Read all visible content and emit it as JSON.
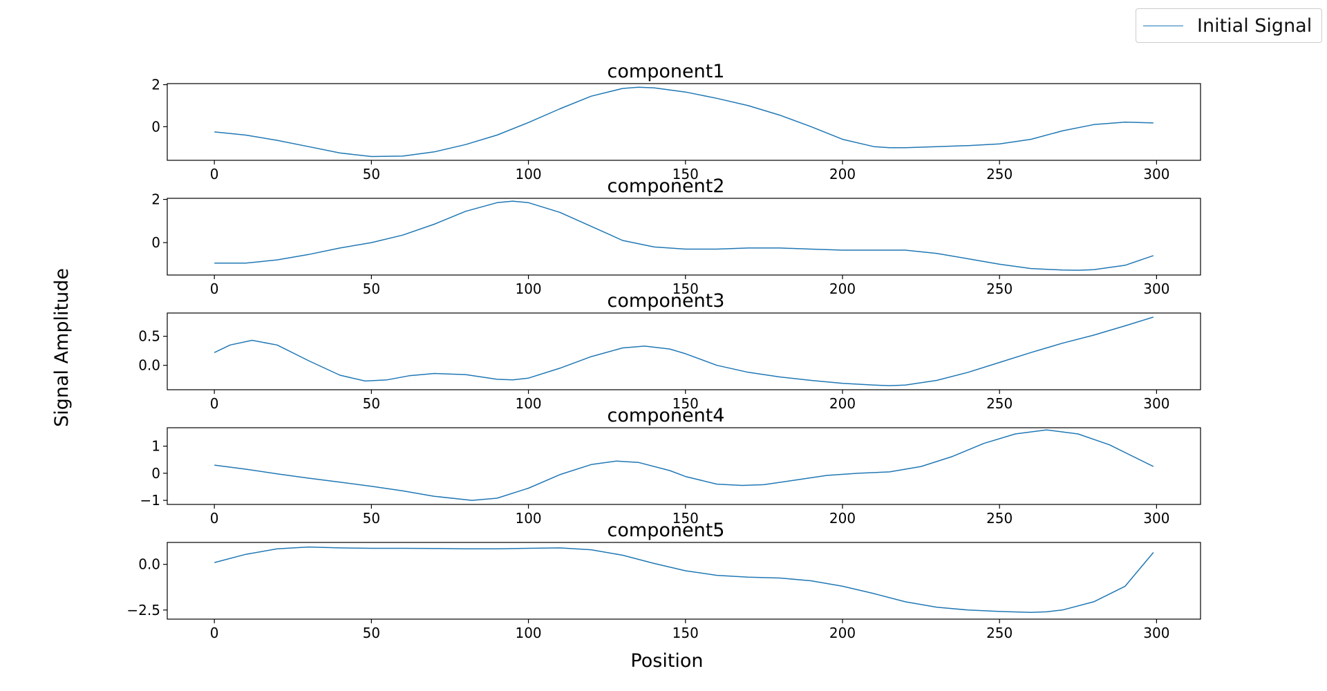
{
  "legend": {
    "label": "Initial Signal"
  },
  "colors": {
    "line": "#1f77b4",
    "axes": "#000000"
  },
  "chart_data": {
    "type": "line",
    "xlabel": "Position",
    "ylabel": "Signal Amplitude",
    "legend_position": "top-right",
    "grid": false,
    "subplots": [
      {
        "title": "component1",
        "xlim": [
          -15,
          314
        ],
        "ylim": [
          -1.6,
          2.05
        ],
        "xticks": [
          0,
          50,
          100,
          150,
          200,
          250,
          300
        ],
        "yticks": [
          0,
          2
        ],
        "ytick_labels": [
          "0",
          "2"
        ],
        "series": [
          {
            "x": [
              0,
              10,
              20,
              30,
              40,
              50,
              60,
              70,
              80,
              90,
              100,
              110,
              120,
              130,
              135,
              140,
              150,
              160,
              170,
              180,
              190,
              200,
              210,
              215,
              220,
              230,
              240,
              250,
              260,
              270,
              280,
              290,
              299
            ],
            "y": [
              -0.25,
              -0.4,
              -0.65,
              -0.95,
              -1.25,
              -1.42,
              -1.4,
              -1.2,
              -0.85,
              -0.4,
              0.2,
              0.85,
              1.45,
              1.82,
              1.88,
              1.85,
              1.65,
              1.35,
              1.0,
              0.55,
              0.0,
              -0.6,
              -0.95,
              -1.0,
              -1.0,
              -0.95,
              -0.9,
              -0.82,
              -0.6,
              -0.2,
              0.1,
              0.22,
              0.18
            ]
          }
        ]
      },
      {
        "title": "component2",
        "xlim": [
          -15,
          314
        ],
        "ylim": [
          -1.5,
          2.05
        ],
        "xticks": [
          0,
          50,
          100,
          150,
          200,
          250,
          300
        ],
        "yticks": [
          0,
          2
        ],
        "ytick_labels": [
          "0",
          "2"
        ],
        "series": [
          {
            "x": [
              0,
              10,
              20,
              30,
              40,
              50,
              60,
              70,
              80,
              90,
              95,
              100,
              110,
              120,
              130,
              140,
              150,
              160,
              170,
              180,
              190,
              200,
              210,
              220,
              230,
              240,
              250,
              260,
              270,
              275,
              280,
              290,
              299
            ],
            "y": [
              -0.95,
              -0.95,
              -0.8,
              -0.55,
              -0.25,
              0.0,
              0.35,
              0.85,
              1.45,
              1.85,
              1.92,
              1.85,
              1.4,
              0.75,
              0.1,
              -0.2,
              -0.3,
              -0.3,
              -0.25,
              -0.25,
              -0.3,
              -0.35,
              -0.35,
              -0.35,
              -0.5,
              -0.75,
              -1.0,
              -1.2,
              -1.27,
              -1.28,
              -1.25,
              -1.05,
              -0.6
            ]
          }
        ]
      },
      {
        "title": "component3",
        "xlim": [
          -15,
          314
        ],
        "ylim": [
          -0.42,
          0.9
        ],
        "xticks": [
          0,
          50,
          100,
          150,
          200,
          250,
          300
        ],
        "yticks": [
          0,
          0.5
        ],
        "ytick_labels": [
          "0.0",
          "0.5"
        ],
        "series": [
          {
            "x": [
              0,
              5,
              12,
              20,
              30,
              40,
              48,
              55,
              62,
              70,
              80,
              90,
              95,
              100,
              110,
              120,
              130,
              137,
              145,
              150,
              160,
              170,
              180,
              190,
              200,
              210,
              215,
              220,
              230,
              240,
              250,
              260,
              270,
              280,
              290,
              299
            ],
            "y": [
              0.22,
              0.35,
              0.43,
              0.35,
              0.08,
              -0.17,
              -0.27,
              -0.25,
              -0.18,
              -0.14,
              -0.16,
              -0.24,
              -0.25,
              -0.22,
              -0.05,
              0.15,
              0.3,
              0.33,
              0.28,
              0.2,
              0.0,
              -0.12,
              -0.2,
              -0.26,
              -0.31,
              -0.34,
              -0.35,
              -0.34,
              -0.26,
              -0.12,
              0.05,
              0.22,
              0.38,
              0.52,
              0.68,
              0.83
            ]
          }
        ]
      },
      {
        "title": "component4",
        "xlim": [
          -15,
          314
        ],
        "ylim": [
          -1.15,
          1.68
        ],
        "xticks": [
          0,
          50,
          100,
          150,
          200,
          250,
          300
        ],
        "yticks": [
          -1,
          0,
          1
        ],
        "ytick_labels": [
          "−1",
          "0",
          "1"
        ],
        "series": [
          {
            "x": [
              0,
              10,
              20,
              30,
              40,
              50,
              60,
              70,
              82,
              90,
              100,
              110,
              120,
              128,
              135,
              145,
              150,
              160,
              168,
              175,
              185,
              195,
              205,
              215,
              225,
              235,
              245,
              255,
              265,
              275,
              285,
              299
            ],
            "y": [
              0.3,
              0.15,
              -0.02,
              -0.18,
              -0.33,
              -0.48,
              -0.65,
              -0.85,
              -1.0,
              -0.92,
              -0.55,
              -0.05,
              0.32,
              0.45,
              0.4,
              0.1,
              -0.12,
              -0.4,
              -0.45,
              -0.42,
              -0.25,
              -0.08,
              0.0,
              0.05,
              0.25,
              0.62,
              1.1,
              1.45,
              1.6,
              1.45,
              1.05,
              0.25
            ]
          }
        ]
      },
      {
        "title": "component5",
        "xlim": [
          -15,
          314
        ],
        "ylim": [
          -3.0,
          1.2
        ],
        "xticks": [
          0,
          50,
          100,
          150,
          200,
          250,
          300
        ],
        "yticks": [
          -2.5,
          0
        ],
        "ytick_labels": [
          "−2.5",
          "0.0"
        ],
        "series": [
          {
            "x": [
              0,
              10,
              20,
              30,
              40,
              50,
              60,
              70,
              80,
              90,
              100,
              110,
              120,
              130,
              140,
              150,
              160,
              170,
              180,
              190,
              200,
              210,
              220,
              230,
              240,
              250,
              260,
              265,
              270,
              280,
              290,
              299
            ],
            "y": [
              0.1,
              0.55,
              0.85,
              0.95,
              0.9,
              0.88,
              0.88,
              0.87,
              0.85,
              0.85,
              0.88,
              0.9,
              0.8,
              0.5,
              0.05,
              -0.35,
              -0.6,
              -0.7,
              -0.75,
              -0.9,
              -1.2,
              -1.6,
              -2.05,
              -2.35,
              -2.5,
              -2.58,
              -2.63,
              -2.6,
              -2.5,
              -2.05,
              -1.2,
              0.65
            ]
          }
        ]
      }
    ]
  }
}
